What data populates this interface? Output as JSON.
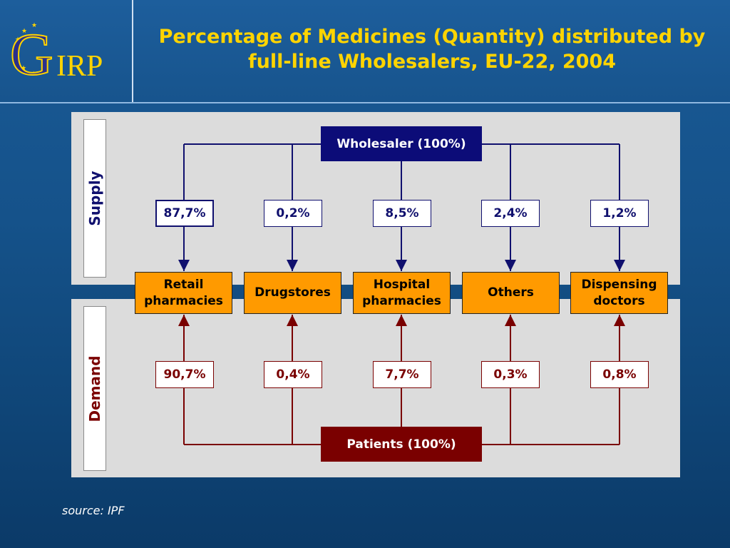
{
  "header": {
    "logo_text": "GIRP",
    "title_line1": "Percentage of Medicines (Quantity) distributed by",
    "title_line2": "full-line Wholesalers, EU-22, 2004"
  },
  "sections": {
    "supply": "Supply",
    "demand": "Demand"
  },
  "supply_source": "Wholesaler (100%)",
  "demand_source": "Patients (100%)",
  "destinations": [
    {
      "line1": "Retail",
      "line2": "pharmacies",
      "supply": "87,7%",
      "demand": "90,7%"
    },
    {
      "line1": "Drugstores",
      "line2": "",
      "supply": "0,2%",
      "demand": "0,4%"
    },
    {
      "line1": "Hospital",
      "line2": "pharmacies",
      "supply": "8,5%",
      "demand": "7,7%"
    },
    {
      "line1": "Others",
      "line2": "",
      "supply": "2,4%",
      "demand": "0,3%"
    },
    {
      "line1": "Dispensing",
      "line2": "doctors",
      "supply": "1,2%",
      "demand": "0,8%"
    }
  ],
  "footer": {
    "source": "source: IPF"
  },
  "colors": {
    "supply_line": "#10106e",
    "demand_line": "#7a0000",
    "destination_fill": "#ff9a00",
    "title": "#ffd400"
  }
}
